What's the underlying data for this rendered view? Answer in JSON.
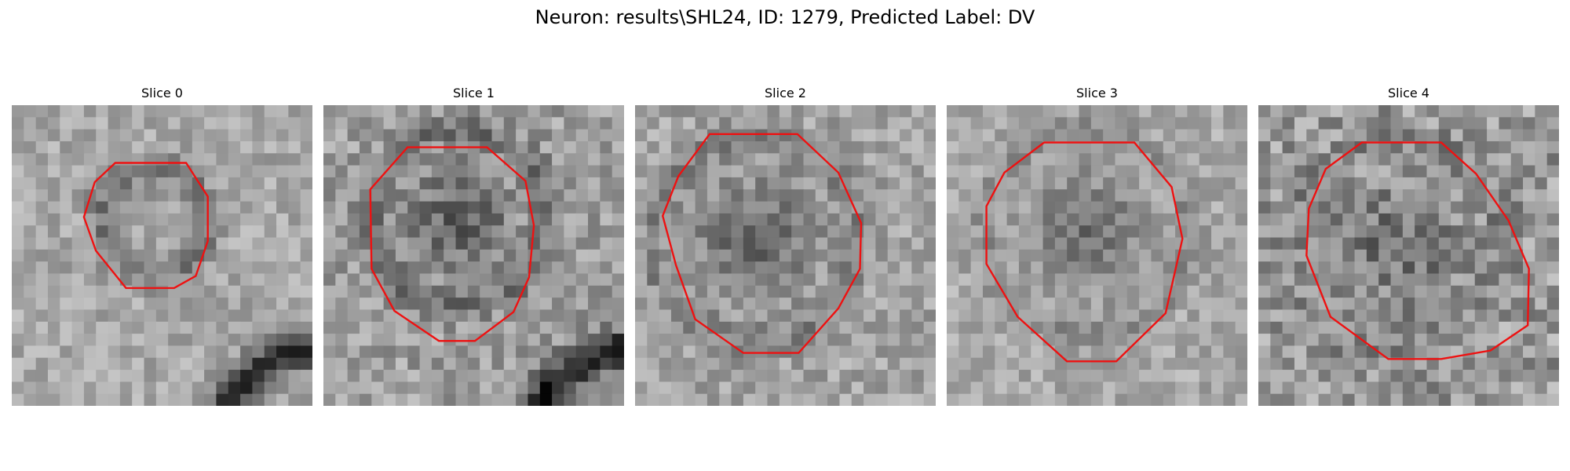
{
  "figure": {
    "title": "Neuron: results\\SHL24, ID: 1279, Predicted Label: DV"
  },
  "panels": [
    {
      "title": "Slice 0"
    },
    {
      "title": "Slice 1"
    },
    {
      "title": "Slice 2"
    },
    {
      "title": "Slice 3"
    },
    {
      "title": "Slice 4"
    }
  ],
  "colors": {
    "contour": "#ee1111",
    "background": "#ffffff"
  }
}
